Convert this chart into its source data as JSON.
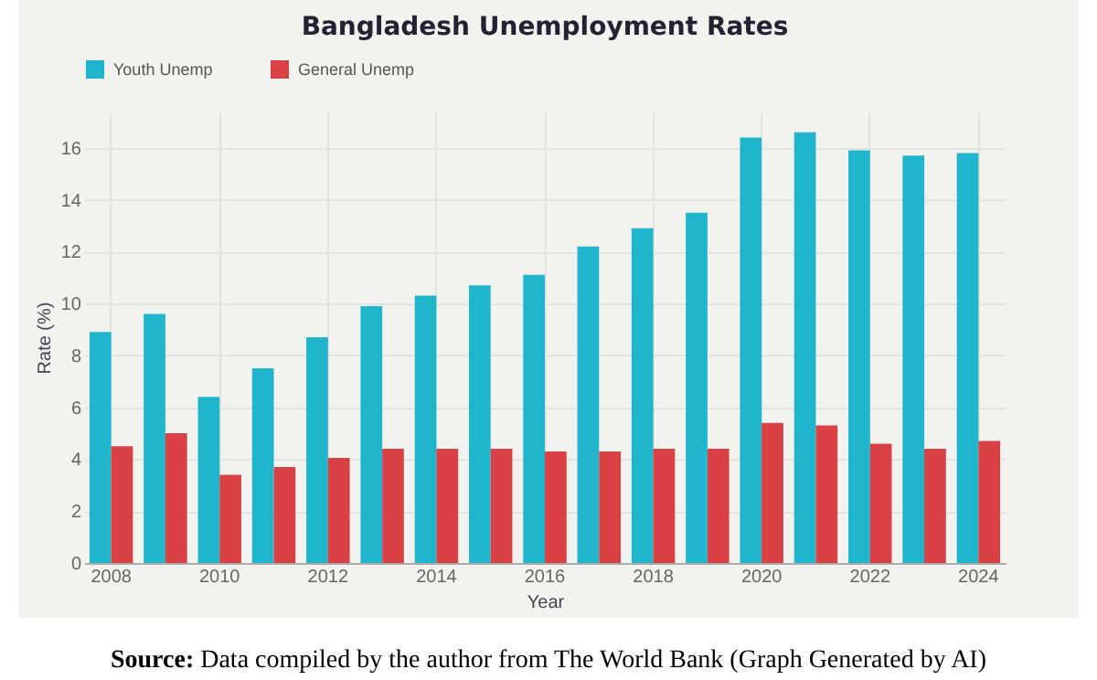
{
  "chart_data": {
    "type": "bar",
    "title": "Bangladesh Unemployment Rates",
    "xlabel": "Year",
    "ylabel": "Rate (%)",
    "categories": [
      "2008",
      null,
      "2010",
      null,
      "2012",
      null,
      "2014",
      null,
      "2016",
      null,
      "2018",
      null,
      "2020",
      null,
      "2022",
      null,
      "2024"
    ],
    "series": [
      {
        "name": "Youth Unemp",
        "color": "#1fb5cc",
        "values": [
          8.9,
          9.6,
          6.4,
          7.5,
          8.7,
          9.9,
          10.3,
          10.7,
          11.1,
          12.2,
          12.9,
          13.5,
          16.4,
          16.6,
          15.9,
          15.7,
          15.8
        ]
      },
      {
        "name": "General Unemp",
        "color": "#d94144",
        "values": [
          4.5,
          5.0,
          3.4,
          3.7,
          4.05,
          4.4,
          4.4,
          4.4,
          4.3,
          4.3,
          4.4,
          4.4,
          5.4,
          5.3,
          4.6,
          4.4,
          4.7
        ]
      }
    ],
    "ylim": [
      0,
      17.4
    ],
    "yticks": [
      0,
      2,
      4,
      6,
      8,
      10,
      12,
      14,
      16
    ],
    "grid": true,
    "legend": "top",
    "annotations": [
      "Source: Data compiled by the author from The World Bank (Graph Generated by AI)"
    ]
  }
}
